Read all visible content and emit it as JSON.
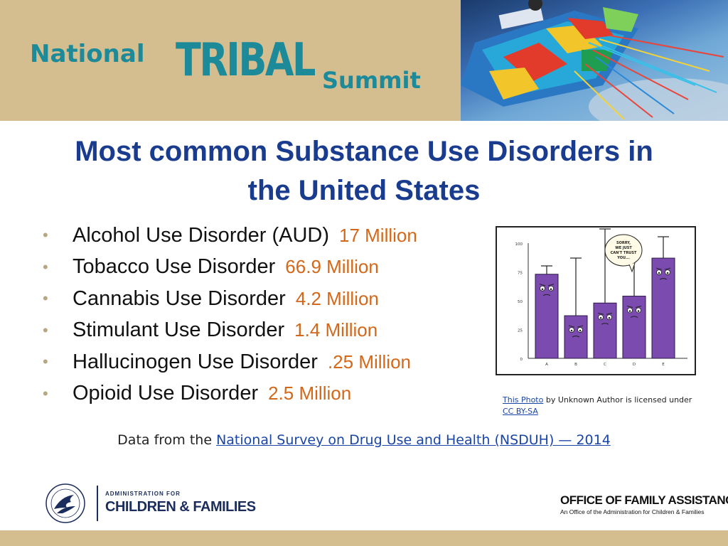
{
  "header": {
    "logo_national": "National",
    "logo_tribal": "TRIBAL",
    "logo_summit": "Summit"
  },
  "slide": {
    "title_line1": "Most common Substance Use Disorders in",
    "title_line2": "the United States",
    "items": [
      {
        "label": "Alcohol Use Disorder (AUD)",
        "value": "17 Million"
      },
      {
        "label": "Tobacco Use Disorder",
        "value": "66.9 Million"
      },
      {
        "label": "Cannabis Use Disorder",
        "value": "4.2 Million"
      },
      {
        "label": "Stimulant Use Disorder",
        "value": "1.4 Million"
      },
      {
        "label": "Hallucinogen Use Disorder",
        "value": ".25 Million"
      },
      {
        "label": "Opioid Use Disorder",
        "value": "2.5 Million"
      }
    ],
    "bullet_glyph": "•"
  },
  "cartoon": {
    "speech": [
      "SORRY,",
      "WE JUST",
      "CAN'T TRUST",
      "YOU..."
    ],
    "y_ticks": [
      "100",
      "75",
      "50",
      "25",
      "0"
    ],
    "x_labels": [
      "A",
      "B",
      "C",
      "D",
      "E"
    ],
    "bar_values": [
      73,
      37,
      48,
      54,
      87
    ],
    "bar_color": "#7b4bb0"
  },
  "credit": {
    "link_photo": "This Photo",
    "text_mid": " by Unknown Author is licensed under",
    "link_license": "CC BY-SA"
  },
  "source": {
    "prefix": "Data from the ",
    "link": "National Survey on Drug Use and Health (NSDUH) — 2014"
  },
  "footer": {
    "acf_small": "ADMINISTRATION FOR",
    "acf_big": "CHILDREN & FAMILIES",
    "ofa_title": "OFFICE OF FAMILY ASSISTANCE",
    "ofa_sub": "An Office of the Administration for Children & Families"
  },
  "colors": {
    "header_bg": "#d4bd8e",
    "title": "#1a3c8f",
    "value": "#d4681a",
    "logo_teal": "#1d8a9a"
  }
}
